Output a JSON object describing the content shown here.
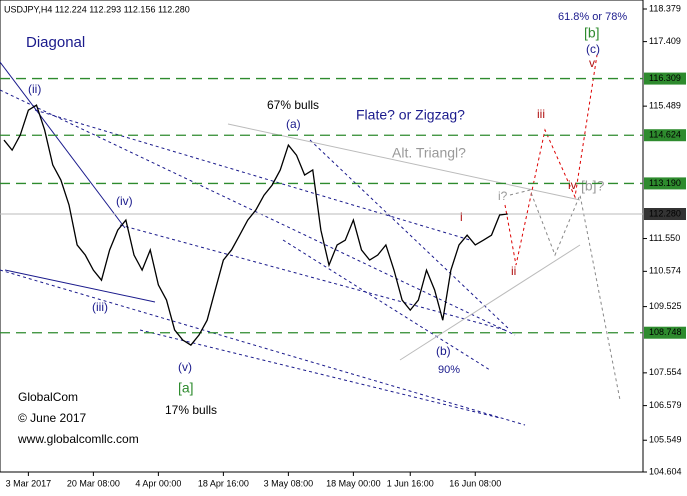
{
  "chart_data": {
    "type": "line",
    "title": "USDJPY,H4  112.224 112.293 112.156 112.280",
    "color": "#000000",
    "categories": [
      null,
      null,
      null,
      "3 Mar 2017",
      null,
      null,
      null,
      null,
      null,
      null,
      null,
      "20 Mar 08:00",
      null,
      null,
      null,
      null,
      null,
      null,
      null,
      "4 Apr 00:00",
      null,
      null,
      null,
      null,
      null,
      null,
      null,
      "18 Apr 16:00",
      null,
      null,
      null,
      null,
      null,
      null,
      null,
      "3 May 08:00",
      null,
      null,
      null,
      null,
      null,
      null,
      null,
      "18 May 00:00",
      null,
      null,
      null,
      null,
      null,
      null,
      "1 Jun 16:00",
      null,
      null,
      null,
      null,
      null,
      null,
      null,
      "16 Jun 08:00",
      null,
      null,
      null,
      null
    ],
    "values": [
      114.48,
      114.18,
      114.63,
      115.37,
      115.52,
      114.78,
      113.74,
      113.29,
      112.55,
      111.36,
      111.06,
      110.61,
      110.31,
      111.21,
      111.8,
      112.1,
      111.06,
      110.61,
      111.21,
      110.17,
      109.72,
      108.83,
      108.53,
      108.38,
      108.68,
      109.12,
      110.02,
      110.91,
      111.21,
      111.65,
      112.1,
      112.4,
      112.84,
      113.14,
      113.59,
      114.33,
      114.03,
      113.44,
      113.59,
      111.8,
      110.76,
      111.36,
      111.5,
      112.1,
      111.21,
      110.91,
      111.06,
      111.36,
      110.61,
      109.72,
      109.42,
      109.72,
      110.61,
      110.02,
      109.12,
      110.61,
      111.36,
      111.65,
      111.36,
      111.5,
      111.65,
      112.25,
      112.28
    ],
    "ylim": [
      104.604,
      118.647
    ],
    "yticks": [
      118.379,
      117.409,
      115.489,
      {
        "value": 111.55,
        "label": "111.550"
      },
      110.574,
      109.525,
      107.554,
      106.579,
      105.549,
      104.604
    ],
    "levels": [
      116.309,
      114.624,
      {
        "value": 113.19,
        "label": "113.190"
      },
      108.748
    ],
    "level_color": "#2e8b2e",
    "current": {
      "value": 112.28,
      "label": "112.280"
    },
    "annotations": [
      "Diagonal",
      "(ii)",
      "(iv)",
      "(iii)",
      "(v)",
      "[a]",
      "17% bulls",
      "67% bulls",
      "(a)",
      "Flate? or Zigzag?",
      "Alt. Triangl?",
      "i?",
      "i",
      "ii",
      "iii",
      "iv",
      "v",
      "[b]?",
      "(b)",
      "90%",
      "61.8% or 78%",
      "[b]",
      "(c)",
      "GlobalCom",
      "© June 2017",
      "www.globalcomllc.com"
    ]
  }
}
